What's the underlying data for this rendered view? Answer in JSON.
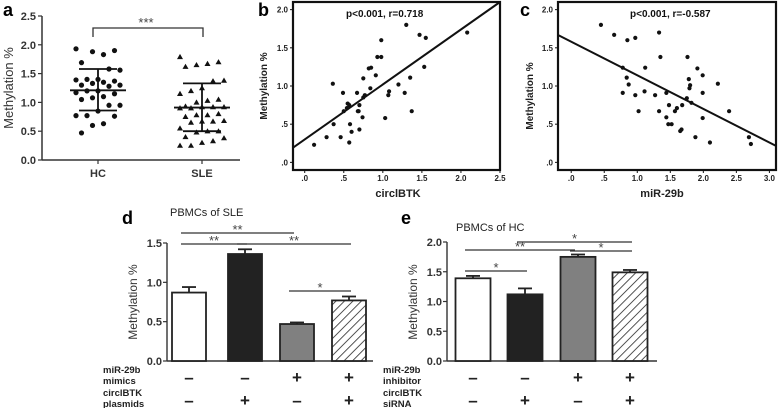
{
  "chart_data": [
    {
      "panel": "a",
      "type": "scatter",
      "subtype": "dot-plot with mean and SD",
      "ylabel": "Methylation %",
      "ylim": [
        0,
        2.5
      ],
      "yticks": [
        "0.0",
        "0.5",
        "1.0",
        "1.5",
        "2.0",
        "2.5"
      ],
      "categories": [
        "HC",
        "SLE"
      ],
      "significance": "***",
      "groups": [
        {
          "name": "HC",
          "marker": "circle",
          "mean": 1.21,
          "sd_low": 0.86,
          "sd_high": 1.58,
          "values": [
            1.93,
            1.9,
            1.83,
            1.88,
            1.69,
            1.56,
            1.58,
            1.4,
            1.4,
            1.39,
            1.37,
            1.35,
            1.33,
            1.3,
            1.3,
            1.28,
            1.2,
            1.2,
            1.17,
            1.15,
            1.1,
            1.08,
            1.05,
            0.95,
            0.95,
            0.85,
            0.77,
            0.77,
            0.76,
            0.63,
            0.6,
            0.47
          ]
        },
        {
          "name": "SLE",
          "marker": "triangle",
          "mean": 0.91,
          "sd_low": 0.5,
          "sd_high": 1.33,
          "values": [
            1.79,
            1.7,
            1.67,
            1.65,
            1.62,
            1.38,
            1.37,
            1.25,
            1.2,
            1.15,
            1.05,
            1.03,
            1.0,
            0.93,
            0.92,
            0.92,
            0.92,
            0.9,
            0.9,
            0.8,
            0.78,
            0.78,
            0.75,
            0.68,
            0.67,
            0.67,
            0.65,
            0.55,
            0.5,
            0.5,
            0.48,
            0.4,
            0.38,
            0.33,
            0.3,
            0.25,
            0.25
          ]
        }
      ]
    },
    {
      "panel": "b",
      "type": "scatter",
      "annotation": "p<0.001, r=0.718",
      "xlabel": "circlBTK",
      "ylabel": "Methylation %",
      "xlim": [
        -0.15,
        2.5
      ],
      "ylim": [
        -0.1,
        2.1
      ],
      "xticks": [
        ".0",
        ".5",
        "1.0",
        "1.5",
        "2.0",
        "2.5"
      ],
      "yticks": [
        ".0",
        ".5",
        "1.0",
        "1.5",
        "2.0"
      ],
      "fit": {
        "slope": 0.72,
        "intercept": 0.3
      },
      "points": [
        [
          0.12,
          0.23
        ],
        [
          0.28,
          0.33
        ],
        [
          0.36,
          1.03
        ],
        [
          0.37,
          0.5
        ],
        [
          0.46,
          0.33
        ],
        [
          0.49,
          0.91
        ],
        [
          0.5,
          0.67
        ],
        [
          0.54,
          0.71
        ],
        [
          0.55,
          0.77
        ],
        [
          0.57,
          0.75
        ],
        [
          0.57,
          0.26
        ],
        [
          0.58,
          0.5
        ],
        [
          0.6,
          0.4
        ],
        [
          0.67,
          0.91
        ],
        [
          0.68,
          0.67
        ],
        [
          0.69,
          0.67
        ],
        [
          0.7,
          0.43
        ],
        [
          0.7,
          0.75
        ],
        [
          0.74,
          0.59
        ],
        [
          0.75,
          1.1
        ],
        [
          0.75,
          0.85
        ],
        [
          0.77,
          0.88
        ],
        [
          0.82,
          1.23
        ],
        [
          0.84,
          0.97
        ],
        [
          0.85,
          1.24
        ],
        [
          0.91,
          1.14
        ],
        [
          0.93,
          1.38
        ],
        [
          0.98,
          1.38
        ],
        [
          0.98,
          1.6
        ],
        [
          1.03,
          0.58
        ],
        [
          1.07,
          0.88
        ],
        [
          1.08,
          0.93
        ],
        [
          1.2,
          1.02
        ],
        [
          1.28,
          0.91
        ],
        [
          1.3,
          1.8
        ],
        [
          1.35,
          1.11
        ],
        [
          1.37,
          0.67
        ],
        [
          1.47,
          1.67
        ],
        [
          1.53,
          1.25
        ],
        [
          1.55,
          1.63
        ],
        [
          2.08,
          1.7
        ]
      ]
    },
    {
      "panel": "c",
      "type": "scatter",
      "annotation": "p<0.001, r=-0.587",
      "xlabel": "miR-29b",
      "ylabel": "Methylation %",
      "xlim": [
        -0.2,
        3.1
      ],
      "ylim": [
        -0.1,
        2.1
      ],
      "xticks": [
        ".0",
        ".5",
        "1.0",
        "1.5",
        "2.0",
        "2.5",
        "3.0"
      ],
      "yticks": [
        ".0",
        ".5",
        "1.0",
        "1.5",
        "2.0"
      ],
      "fit": {
        "slope": -0.44,
        "intercept": 1.58
      },
      "points": [
        [
          0.45,
          1.8
        ],
        [
          0.65,
          1.67
        ],
        [
          0.85,
          1.6
        ],
        [
          0.97,
          1.63
        ],
        [
          1.33,
          1.7
        ],
        [
          1.35,
          1.38
        ],
        [
          1.76,
          1.38
        ],
        [
          0.78,
          1.24
        ],
        [
          1.12,
          1.24
        ],
        [
          1.91,
          1.23
        ],
        [
          1.99,
          1.14
        ],
        [
          0.84,
          1.11
        ],
        [
          0.87,
          1.02
        ],
        [
          1.78,
          1.09
        ],
        [
          1.8,
          1.01
        ],
        [
          1.79,
          0.97
        ],
        [
          2.22,
          1.03
        ],
        [
          0.78,
          0.91
        ],
        [
          0.97,
          0.88
        ],
        [
          1.11,
          0.93
        ],
        [
          1.27,
          0.88
        ],
        [
          1.44,
          0.91
        ],
        [
          1.99,
          0.91
        ],
        [
          1.75,
          0.84
        ],
        [
          1.82,
          0.78
        ],
        [
          1.02,
          0.67
        ],
        [
          1.33,
          0.67
        ],
        [
          1.48,
          0.75
        ],
        [
          1.57,
          0.67
        ],
        [
          1.6,
          0.71
        ],
        [
          1.68,
          0.75
        ],
        [
          2.39,
          0.67
        ],
        [
          1.44,
          0.59
        ],
        [
          1.99,
          0.58
        ],
        [
          1.47,
          0.5
        ],
        [
          1.52,
          0.5
        ],
        [
          1.65,
          0.41
        ],
        [
          1.67,
          0.43
        ],
        [
          1.88,
          0.33
        ],
        [
          2.1,
          0.26
        ],
        [
          2.69,
          0.33
        ],
        [
          2.72,
          0.24
        ]
      ]
    },
    {
      "panel": "d",
      "type": "bar",
      "title": "PBMCs of  SLE",
      "ylabel": "Methylation %",
      "ylim": [
        0,
        1.5
      ],
      "yticks": [
        "0.0",
        "0.5",
        "1.0",
        "1.5"
      ],
      "values": [
        0.87,
        1.36,
        0.47,
        0.77
      ],
      "errors": [
        0.07,
        0.06,
        0.02,
        0.05
      ],
      "fills": [
        "white",
        "#222222",
        "#808080",
        "hatch"
      ],
      "rows": [
        {
          "label1": "miR-29b",
          "label2": "mimics",
          "signs": [
            "-",
            "-",
            "+",
            "+"
          ]
        },
        {
          "label1": "circlBTK",
          "label2": "plasmids",
          "signs": [
            "-",
            "+",
            "-",
            "+"
          ]
        }
      ],
      "comparisons": [
        {
          "bars": [
            1,
            3
          ],
          "label": "**"
        },
        {
          "bars": [
            1,
            2
          ],
          "label": "**"
        },
        {
          "bars": [
            2,
            4
          ],
          "label": "**"
        },
        {
          "bars": [
            3,
            4
          ],
          "label": "*"
        }
      ]
    },
    {
      "panel": "e",
      "type": "bar",
      "title": "PBMCs of  HC",
      "ylabel": "Methylation %",
      "ylim": [
        0,
        2.0
      ],
      "yticks": [
        "0.0",
        "0.5",
        "1.0",
        "1.5",
        "2.0"
      ],
      "values": [
        1.39,
        1.12,
        1.75,
        1.49
      ],
      "errors": [
        0.04,
        0.1,
        0.04,
        0.04
      ],
      "fills": [
        "white",
        "#222222",
        "#808080",
        "hatch"
      ],
      "rows": [
        {
          "label1": "miR-29b",
          "label2": "inhibitor",
          "signs": [
            "-",
            "-",
            "+",
            "+"
          ]
        },
        {
          "label1": "circlBTK",
          "label2": "siRNA",
          "signs": [
            "-",
            "+",
            "-",
            "+"
          ]
        }
      ],
      "comparisons": [
        {
          "bars": [
            1,
            2
          ],
          "label": "*"
        },
        {
          "bars": [
            1,
            3
          ],
          "label": "**"
        },
        {
          "bars": [
            2,
            4
          ],
          "label": "*"
        },
        {
          "bars": [
            3,
            4
          ],
          "label": "*"
        }
      ]
    }
  ],
  "panel_letters": [
    "a",
    "b",
    "c",
    "d",
    "e"
  ]
}
